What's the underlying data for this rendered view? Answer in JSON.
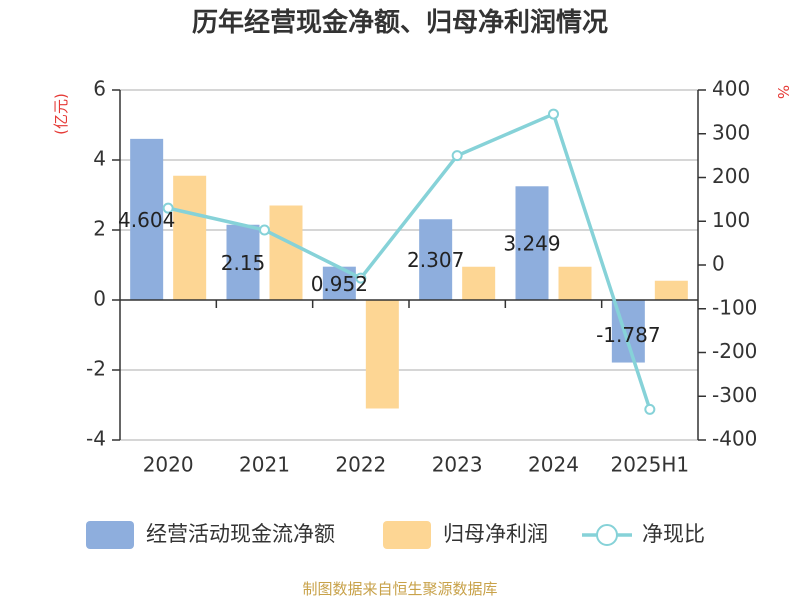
{
  "chart_data": {
    "type": "bar",
    "title": "历年经营现金净额、归母净利润情况",
    "categories": [
      "2020",
      "2021",
      "2022",
      "2023",
      "2024",
      "2025H1"
    ],
    "y_left": {
      "unit": "(亿元)",
      "range": [
        -4,
        6
      ],
      "ticks": [
        "6",
        "4",
        "2",
        "0",
        "-2",
        "-4"
      ]
    },
    "y_right": {
      "unit": "%",
      "range": [
        -400,
        400
      ],
      "ticks": [
        "400",
        "300",
        "200",
        "100",
        "0",
        "-100",
        "-200",
        "-300",
        "-400"
      ]
    },
    "series": [
      {
        "name": "经营活动现金流净额",
        "kind": "bar",
        "axis": "left",
        "color": "#8eaedd",
        "values": [
          4.604,
          2.15,
          0.952,
          2.307,
          3.249,
          -1.787
        ],
        "labels": [
          "4.604",
          "2.15",
          "0.952",
          "2.307",
          "3.249",
          "-1.787"
        ]
      },
      {
        "name": "归母净利润",
        "kind": "bar",
        "axis": "left",
        "color": "#fdd694",
        "values": [
          3.55,
          2.7,
          -3.1,
          0.95,
          0.95,
          0.55
        ]
      },
      {
        "name": "净现比",
        "kind": "line",
        "axis": "right",
        "color": "#86d2d8",
        "values": [
          130,
          80,
          -30,
          250,
          345,
          -330
        ]
      }
    ],
    "grid": true,
    "legend_position": "bottom",
    "source": "制图数据来自恒生聚源数据库"
  }
}
